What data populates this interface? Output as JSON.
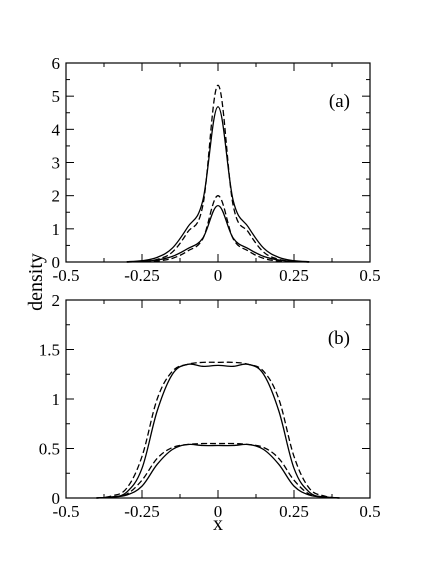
{
  "chart_data": [
    {
      "type": "line",
      "panel_label": "(a)",
      "xlabel": "",
      "ylabel": "density",
      "xlim": [
        -0.5,
        0.5
      ],
      "ylim": [
        0,
        6
      ],
      "x_ticks": [
        -0.5,
        -0.25,
        0,
        0.25,
        0.5
      ],
      "x_tick_labels": [
        "-0.5",
        "-0.25",
        "0",
        "0.25",
        "0.5"
      ],
      "y_ticks": [
        0,
        1,
        2,
        3,
        4,
        5,
        6
      ],
      "y_tick_labels": [
        "0",
        "1",
        "2",
        "3",
        "4",
        "5",
        "6"
      ],
      "grid": false,
      "series": [
        {
          "style": "solid",
          "x": [
            -0.3,
            -0.25,
            -0.2,
            -0.15,
            -0.1,
            -0.05,
            0,
            0.05,
            0.1,
            0.15,
            0.2,
            0.25,
            0.3
          ],
          "y": [
            0.01,
            0.04,
            0.14,
            0.42,
            1.05,
            1.85,
            4.68,
            1.85,
            1.05,
            0.42,
            0.14,
            0.04,
            0.01
          ]
        },
        {
          "style": "dashed",
          "x": [
            -0.3,
            -0.25,
            -0.2,
            -0.15,
            -0.1,
            -0.05,
            0,
            0.05,
            0.1,
            0.15,
            0.2,
            0.25,
            0.3
          ],
          "y": [
            0.0,
            0.02,
            0.08,
            0.3,
            0.9,
            1.7,
            5.33,
            1.7,
            0.9,
            0.3,
            0.08,
            0.02,
            0.0
          ]
        },
        {
          "style": "solid",
          "x": [
            -0.3,
            -0.25,
            -0.2,
            -0.15,
            -0.1,
            -0.05,
            0,
            0.05,
            0.1,
            0.15,
            0.2,
            0.25,
            0.3
          ],
          "y": [
            0.0,
            0.02,
            0.06,
            0.17,
            0.4,
            0.72,
            1.7,
            0.72,
            0.4,
            0.17,
            0.06,
            0.02,
            0.0
          ]
        },
        {
          "style": "dashed",
          "x": [
            -0.3,
            -0.25,
            -0.2,
            -0.15,
            -0.1,
            -0.05,
            0,
            0.05,
            0.1,
            0.15,
            0.2,
            0.25,
            0.3
          ],
          "y": [
            0.0,
            0.01,
            0.03,
            0.11,
            0.33,
            0.7,
            2.0,
            0.7,
            0.33,
            0.11,
            0.03,
            0.01,
            0.0
          ]
        }
      ]
    },
    {
      "type": "line",
      "panel_label": "(b)",
      "xlabel": "x",
      "ylabel": "",
      "xlim": [
        -0.5,
        0.5
      ],
      "ylim": [
        0,
        2
      ],
      "x_ticks": [
        -0.5,
        -0.25,
        0,
        0.25,
        0.5
      ],
      "x_tick_labels": [
        "-0.5",
        "-0.25",
        "0",
        "0.25",
        "0.5"
      ],
      "y_ticks": [
        0,
        0.5,
        1,
        1.5,
        2
      ],
      "y_tick_labels": [
        "0",
        "0.5",
        "1",
        "1.5",
        "2"
      ],
      "grid": false,
      "series": [
        {
          "style": "solid",
          "x": [
            -0.4,
            -0.35,
            -0.3,
            -0.25,
            -0.2,
            -0.15,
            -0.1,
            -0.05,
            0,
            0.05,
            0.1,
            0.15,
            0.2,
            0.25,
            0.3,
            0.35,
            0.4
          ],
          "y": [
            0.0,
            0.01,
            0.06,
            0.3,
            0.88,
            1.25,
            1.35,
            1.33,
            1.34,
            1.33,
            1.35,
            1.25,
            0.88,
            0.3,
            0.06,
            0.01,
            0.0
          ]
        },
        {
          "style": "dashed",
          "x": [
            -0.4,
            -0.35,
            -0.3,
            -0.25,
            -0.2,
            -0.15,
            -0.1,
            -0.05,
            0,
            0.05,
            0.1,
            0.15,
            0.2,
            0.25,
            0.3,
            0.35,
            0.4
          ],
          "y": [
            0.0,
            0.02,
            0.1,
            0.42,
            1.0,
            1.28,
            1.35,
            1.37,
            1.37,
            1.37,
            1.35,
            1.28,
            1.0,
            0.42,
            0.1,
            0.02,
            0.0
          ]
        },
        {
          "style": "solid",
          "x": [
            -0.4,
            -0.35,
            -0.3,
            -0.25,
            -0.2,
            -0.15,
            -0.1,
            -0.05,
            0,
            0.05,
            0.1,
            0.15,
            0.2,
            0.25,
            0.3,
            0.35,
            0.4
          ],
          "y": [
            0.0,
            0.01,
            0.03,
            0.12,
            0.34,
            0.49,
            0.54,
            0.53,
            0.53,
            0.53,
            0.54,
            0.49,
            0.34,
            0.12,
            0.03,
            0.01,
            0.0
          ]
        },
        {
          "style": "dashed",
          "x": [
            -0.4,
            -0.35,
            -0.3,
            -0.25,
            -0.2,
            -0.15,
            -0.1,
            -0.05,
            0,
            0.05,
            0.1,
            0.15,
            0.2,
            0.25,
            0.3,
            0.35,
            0.4
          ],
          "y": [
            0.0,
            0.01,
            0.04,
            0.18,
            0.4,
            0.51,
            0.54,
            0.55,
            0.55,
            0.55,
            0.54,
            0.51,
            0.4,
            0.18,
            0.04,
            0.01,
            0.0
          ]
        }
      ]
    }
  ]
}
